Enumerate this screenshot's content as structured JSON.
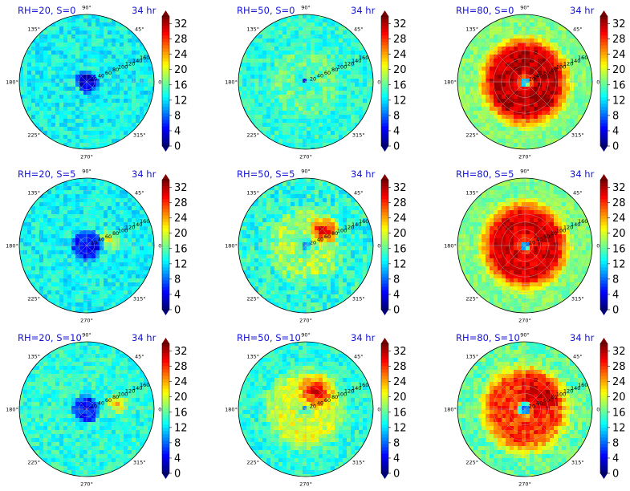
{
  "colors": {
    "title": "#1414d8",
    "colormap": [
      "#00007f",
      "#0000ff",
      "#007fff",
      "#00ffff",
      "#7fff7f",
      "#ffff00",
      "#ff7f00",
      "#ff0000",
      "#7f0000"
    ]
  },
  "chart_data": [
    {
      "type": "heatmap",
      "projection": "polar",
      "title": "RH=20, S=0",
      "time_label": "34 hr",
      "angle_ticks": [
        "0°",
        "45°",
        "90°",
        "135°",
        "180°",
        "225°",
        "270°",
        "315°"
      ],
      "radial_ticks": [
        "20",
        "40",
        "60",
        "80",
        "100",
        "120",
        "140",
        "160"
      ],
      "colorbar_ticks": [
        "0",
        "4",
        "8",
        "12",
        "16",
        "20",
        "24",
        "28",
        "32"
      ],
      "vmin": 0,
      "vmax": 34,
      "background_level": 13,
      "center_level": 3,
      "center_radius": 0.17,
      "ring_level": 13,
      "ring_width": 0.2,
      "noise": 2.5,
      "patch": null
    },
    {
      "type": "heatmap",
      "projection": "polar",
      "title": "RH=50, S=0",
      "time_label": "34 hr",
      "angle_ticks": [
        "0°",
        "45°",
        "90°",
        "135°",
        "180°",
        "225°",
        "270°",
        "315°"
      ],
      "radial_ticks": [
        "20",
        "40",
        "60",
        "80",
        "100",
        "120",
        "140",
        "160"
      ],
      "colorbar_ticks": [
        "0",
        "4",
        "8",
        "12",
        "16",
        "20",
        "24",
        "28",
        "32"
      ],
      "vmin": 0,
      "vmax": 34,
      "background_level": 14,
      "center_level": 6,
      "center_radius": 0.04,
      "ring_level": 16,
      "ring_width": 0.25,
      "noise": 2.5,
      "patch": null
    },
    {
      "type": "heatmap",
      "projection": "polar",
      "title": "RH=80, S=0",
      "time_label": "34 hr",
      "angle_ticks": [
        "0°",
        "45°",
        "90°",
        "135°",
        "180°",
        "225°",
        "270°",
        "315°"
      ],
      "radial_ticks": [
        "20",
        "40",
        "60",
        "80",
        "100",
        "120",
        "140",
        "160"
      ],
      "colorbar_ticks": [
        "0",
        "4",
        "8",
        "12",
        "16",
        "20",
        "24",
        "28",
        "32"
      ],
      "vmin": 0,
      "vmax": 34,
      "background_level": 17,
      "center_level": 10,
      "center_radius": 0.07,
      "ring_level": 32,
      "ring_width": 0.42,
      "noise": 2,
      "patch": null
    },
    {
      "type": "heatmap",
      "projection": "polar",
      "title": "RH=20, S=5",
      "time_label": "34 hr",
      "angle_ticks": [
        "0°",
        "45°",
        "90°",
        "135°",
        "180°",
        "225°",
        "270°",
        "315°"
      ],
      "radial_ticks": [
        "20",
        "40",
        "60",
        "80",
        "100",
        "120",
        "140",
        "160"
      ],
      "colorbar_ticks": [
        "0",
        "4",
        "8",
        "12",
        "16",
        "20",
        "24",
        "28",
        "32"
      ],
      "vmin": 0,
      "vmax": 34,
      "background_level": 13,
      "center_level": 5,
      "center_radius": 0.25,
      "ring_level": 13,
      "ring_width": 0.2,
      "noise": 2.5,
      "patch": {
        "angle": 15,
        "dist": 0.35,
        "level": 20,
        "radius": 0.2
      }
    },
    {
      "type": "heatmap",
      "projection": "polar",
      "title": "RH=50, S=5",
      "time_label": "34 hr",
      "angle_ticks": [
        "0°",
        "45°",
        "90°",
        "135°",
        "180°",
        "225°",
        "270°",
        "315°"
      ],
      "radial_ticks": [
        "20",
        "40",
        "60",
        "80",
        "100",
        "120",
        "140",
        "160"
      ],
      "colorbar_ticks": [
        "0",
        "4",
        "8",
        "12",
        "16",
        "20",
        "24",
        "28",
        "32"
      ],
      "vmin": 0,
      "vmax": 34,
      "background_level": 14,
      "center_level": 6,
      "center_radius": 0.06,
      "ring_level": 18,
      "ring_width": 0.3,
      "noise": 3,
      "patch": {
        "angle": 40,
        "dist": 0.35,
        "level": 30,
        "radius": 0.25
      }
    },
    {
      "type": "heatmap",
      "projection": "polar",
      "title": "RH=80, S=5",
      "time_label": "34 hr",
      "angle_ticks": [
        "0°",
        "45°",
        "90°",
        "135°",
        "180°",
        "225°",
        "270°",
        "315°"
      ],
      "radial_ticks": [
        "20",
        "40",
        "60",
        "80",
        "100",
        "120",
        "140",
        "160"
      ],
      "colorbar_ticks": [
        "0",
        "4",
        "8",
        "12",
        "16",
        "20",
        "24",
        "28",
        "32"
      ],
      "vmin": 0,
      "vmax": 34,
      "background_level": 17,
      "center_level": 10,
      "center_radius": 0.07,
      "ring_level": 31,
      "ring_width": 0.42,
      "noise": 2,
      "patch": null
    },
    {
      "type": "heatmap",
      "projection": "polar",
      "title": "RH=20, S=10",
      "time_label": "34 hr",
      "angle_ticks": [
        "0°",
        "45°",
        "90°",
        "135°",
        "180°",
        "225°",
        "270°",
        "315°"
      ],
      "radial_ticks": [
        "20",
        "40",
        "60",
        "80",
        "100",
        "120",
        "140",
        "160"
      ],
      "colorbar_ticks": [
        "0",
        "4",
        "8",
        "12",
        "16",
        "20",
        "24",
        "28",
        "32"
      ],
      "vmin": 0,
      "vmax": 34,
      "background_level": 14,
      "center_level": 5,
      "center_radius": 0.22,
      "ring_level": 14,
      "ring_width": 0.2,
      "noise": 2.5,
      "patch": {
        "angle": 10,
        "dist": 0.45,
        "level": 24,
        "radius": 0.18
      }
    },
    {
      "type": "heatmap",
      "projection": "polar",
      "title": "RH=50, S=10",
      "time_label": "34 hr",
      "angle_ticks": [
        "0°",
        "45°",
        "90°",
        "135°",
        "180°",
        "225°",
        "270°",
        "315°"
      ],
      "radial_ticks": [
        "20",
        "40",
        "60",
        "80",
        "100",
        "120",
        "140",
        "160"
      ],
      "colorbar_ticks": [
        "0",
        "4",
        "8",
        "12",
        "16",
        "20",
        "24",
        "28",
        "32"
      ],
      "vmin": 0,
      "vmax": 34,
      "background_level": 14,
      "center_level": 8,
      "center_radius": 0.04,
      "ring_level": 20,
      "ring_width": 0.35,
      "noise": 2.5,
      "patch": {
        "angle": 60,
        "dist": 0.3,
        "level": 30,
        "radius": 0.3
      }
    },
    {
      "type": "heatmap",
      "projection": "polar",
      "title": "RH=80, S=10",
      "time_label": "34 hr",
      "angle_ticks": [
        "0°",
        "45°",
        "90°",
        "135°",
        "180°",
        "225°",
        "270°",
        "315°"
      ],
      "radial_ticks": [
        "20",
        "40",
        "60",
        "80",
        "100",
        "120",
        "140",
        "160"
      ],
      "colorbar_ticks": [
        "0",
        "4",
        "8",
        "12",
        "16",
        "20",
        "24",
        "28",
        "32"
      ],
      "vmin": 0,
      "vmax": 34,
      "background_level": 16,
      "center_level": 8,
      "center_radius": 0.1,
      "ring_level": 28,
      "ring_width": 0.42,
      "noise": 2.5,
      "patch": {
        "angle": 45,
        "dist": 0.3,
        "level": 32,
        "radius": 0.35
      }
    }
  ]
}
